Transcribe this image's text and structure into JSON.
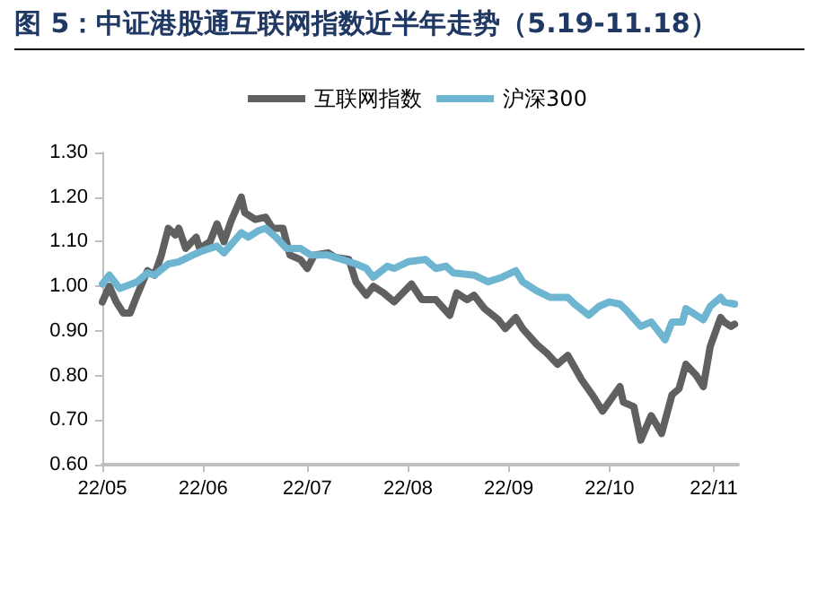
{
  "chart_data": {
    "type": "line",
    "title": "图 5：中证港股通互联网指数近半年走势（5.19-11.18）",
    "xlim": [
      "--05-19",
      "--11-18"
    ],
    "xticks": [
      {
        "value": "--05-19",
        "label": "22/05"
      },
      {
        "value": "--06-17",
        "label": "22/06"
      },
      {
        "value": "--07-17",
        "label": "22/07"
      },
      {
        "value": "--08-15",
        "label": "22/08"
      },
      {
        "value": "--09-13",
        "label": "22/09"
      },
      {
        "value": "--10-12",
        "label": "22/10"
      },
      {
        "value": "--11-11",
        "label": "22/11"
      }
    ],
    "ylim": [
      0.6,
      1.3
    ],
    "yticks": [
      {
        "value": 0.6,
        "label": "0.60"
      },
      {
        "value": 0.7,
        "label": "0.70"
      },
      {
        "value": 0.8,
        "label": "0.80"
      },
      {
        "value": 0.9,
        "label": "0.90"
      },
      {
        "value": 1.0,
        "label": "1.00"
      },
      {
        "value": 1.1,
        "label": "1.10"
      },
      {
        "value": 1.2,
        "label": "1.20"
      },
      {
        "value": 1.3,
        "label": "1.30"
      }
    ],
    "grid": false,
    "legend": "top",
    "marker": "none",
    "line_style": "solid",
    "series": [
      {
        "name": "互联网指数",
        "color": "#606060",
        "x": [
          "--05-19",
          "--05-21",
          "--05-23",
          "--05-25",
          "--05-27",
          "--05-29",
          "--06-01",
          "--06-03",
          "--06-05",
          "--06-07",
          "--06-09",
          "--06-10",
          "--06-12",
          "--06-15",
          "--06-16",
          "--06-19",
          "--06-21",
          "--06-23",
          "--06-25",
          "--06-28",
          "--06-29",
          "--07-02",
          "--07-05",
          "--07-07",
          "--07-10",
          "--07-12",
          "--07-15",
          "--07-17",
          "--07-19",
          "--07-23",
          "--07-25",
          "--07-29",
          "--07-31",
          "--08-03",
          "--08-05",
          "--08-08",
          "--08-11",
          "--08-16",
          "--08-19",
          "--08-23",
          "--08-27",
          "--08-29",
          "--09-01",
          "--09-03",
          "--09-06",
          "--09-10",
          "--09-12",
          "--09-15",
          "--09-17",
          "--09-21",
          "--09-24",
          "--09-27",
          "--09-30",
          "--10-04",
          "--10-07",
          "--10-10",
          "--10-15",
          "--10-16",
          "--10-19",
          "--10-21",
          "--10-24",
          "--10-27",
          "--10-30",
          "--11-01",
          "--11-03",
          "--11-06",
          "--11-08",
          "--11-10",
          "--11-13",
          "--11-14",
          "--11-16",
          "--11-17"
        ],
        "values": [
          0.965,
          1.0,
          0.965,
          0.94,
          0.94,
          0.98,
          1.035,
          1.025,
          1.07,
          1.13,
          1.115,
          1.13,
          1.085,
          1.11,
          1.085,
          1.1,
          1.14,
          1.1,
          1.145,
          1.2,
          1.165,
          1.15,
          1.155,
          1.13,
          1.13,
          1.07,
          1.06,
          1.04,
          1.07,
          1.075,
          1.065,
          1.06,
          1.01,
          0.98,
          1.0,
          0.985,
          0.965,
          1.005,
          0.97,
          0.97,
          0.935,
          0.985,
          0.97,
          0.98,
          0.95,
          0.925,
          0.905,
          0.93,
          0.905,
          0.87,
          0.85,
          0.825,
          0.845,
          0.79,
          0.757,
          0.72,
          0.775,
          0.74,
          0.73,
          0.655,
          0.71,
          0.67,
          0.757,
          0.77,
          0.825,
          0.8,
          0.775,
          0.865,
          0.93,
          0.92,
          0.91,
          0.915
        ]
      },
      {
        "name": "沪深300",
        "color": "#6db5d0",
        "x": [
          "--05-19",
          "--05-21",
          "--05-24",
          "--05-29",
          "--06-01",
          "--06-03",
          "--06-07",
          "--06-10",
          "--06-14",
          "--06-17",
          "--06-21",
          "--06-23",
          "--06-28",
          "--06-30",
          "--07-03",
          "--07-05",
          "--07-08",
          "--07-11",
          "--07-15",
          "--07-18",
          "--07-23",
          "--07-27",
          "--07-31",
          "--08-03",
          "--08-05",
          "--08-09",
          "--08-11",
          "--08-15",
          "--08-20",
          "--08-23",
          "--08-26",
          "--08-28",
          "--09-03",
          "--09-07",
          "--09-11",
          "--09-15",
          "--09-17",
          "--09-21",
          "--09-25",
          "--09-30",
          "--10-02",
          "--10-06",
          "--10-09",
          "--10-12",
          "--10-15",
          "--10-17",
          "--10-21",
          "--10-24",
          "--10-28",
          "--10-30",
          "--11-02",
          "--11-03",
          "--11-08",
          "--11-10",
          "--11-13",
          "--11-14",
          "--11-17"
        ],
        "values": [
          1.005,
          1.025,
          0.995,
          1.01,
          1.03,
          1.025,
          1.05,
          1.055,
          1.07,
          1.08,
          1.09,
          1.075,
          1.12,
          1.11,
          1.125,
          1.13,
          1.11,
          1.085,
          1.085,
          1.07,
          1.07,
          1.06,
          1.05,
          1.04,
          1.02,
          1.045,
          1.04,
          1.055,
          1.06,
          1.04,
          1.045,
          1.03,
          1.025,
          1.01,
          1.02,
          1.035,
          1.01,
          0.99,
          0.975,
          0.975,
          0.96,
          0.935,
          0.955,
          0.965,
          0.96,
          0.945,
          0.91,
          0.92,
          0.88,
          0.92,
          0.92,
          0.95,
          0.925,
          0.955,
          0.975,
          0.965,
          0.96
        ]
      }
    ]
  }
}
